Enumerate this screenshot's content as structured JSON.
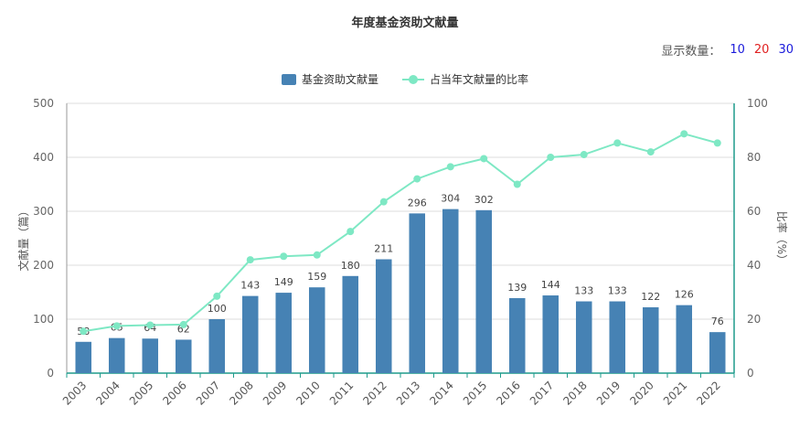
{
  "display_count": {
    "label": "显示数量：",
    "options": [
      {
        "label": "10",
        "color": "#1a1adb"
      },
      {
        "label": "20",
        "color": "#e02020"
      },
      {
        "label": "30",
        "color": "#1a1adb"
      }
    ]
  },
  "colors": {
    "bar": "#4682b4",
    "line": "#7ee8c4",
    "right_axis": "#1e9c8c",
    "grid": "#dddddd"
  },
  "chart_data": {
    "type": "bar",
    "title": "年度基金资助文献量",
    "categories": [
      "2003",
      "2004",
      "2005",
      "2006",
      "2007",
      "2008",
      "2009",
      "2010",
      "2011",
      "2012",
      "2013",
      "2014",
      "2015",
      "2016",
      "2017",
      "2018",
      "2019",
      "2020",
      "2021",
      "2022"
    ],
    "series": [
      {
        "name": "基金资助文献量",
        "type": "bar",
        "axis": "left",
        "values": [
          58,
          65,
          64,
          62,
          100,
          143,
          149,
          159,
          180,
          211,
          296,
          304,
          302,
          139,
          144,
          133,
          133,
          122,
          126,
          76
        ]
      },
      {
        "name": "占当年文献量的比率",
        "type": "line",
        "axis": "right",
        "values": [
          15.5,
          17.5,
          17.8,
          18,
          28.5,
          42,
          43.3,
          43.8,
          52.5,
          63.5,
          72,
          76.5,
          79.5,
          70,
          80,
          81,
          85.3,
          82,
          88.7,
          85.3
        ]
      }
    ],
    "ylabel": "文献量（篇）",
    "y2label": "比率（%）",
    "ylim": [
      0,
      500
    ],
    "y2lim": [
      0,
      100
    ],
    "yticks": [
      "0",
      "100",
      "200",
      "300",
      "400",
      "500"
    ],
    "y2ticks": [
      "0",
      "20",
      "40",
      "60",
      "80",
      "100"
    ],
    "grid": true,
    "legend_position": "top-center"
  }
}
